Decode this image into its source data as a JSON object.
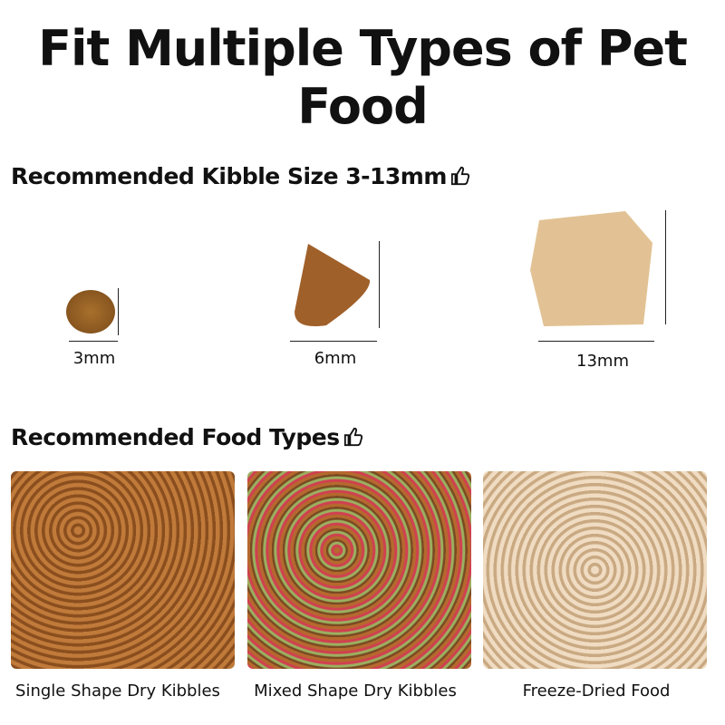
{
  "title": "Fit Multiple Types of Pet Food",
  "kibble_heading": "Recommended Kibble Size 3-13mm",
  "sizes": [
    "3mm",
    "6mm",
    "13mm"
  ],
  "food_heading": "Recommended Food Types",
  "foods": [
    "Single Shape Dry Kibbles",
    "Mixed Shape Dry Kibbles",
    "Freeze-Dried Food"
  ],
  "icons": [
    "thumbs-up-icon"
  ]
}
